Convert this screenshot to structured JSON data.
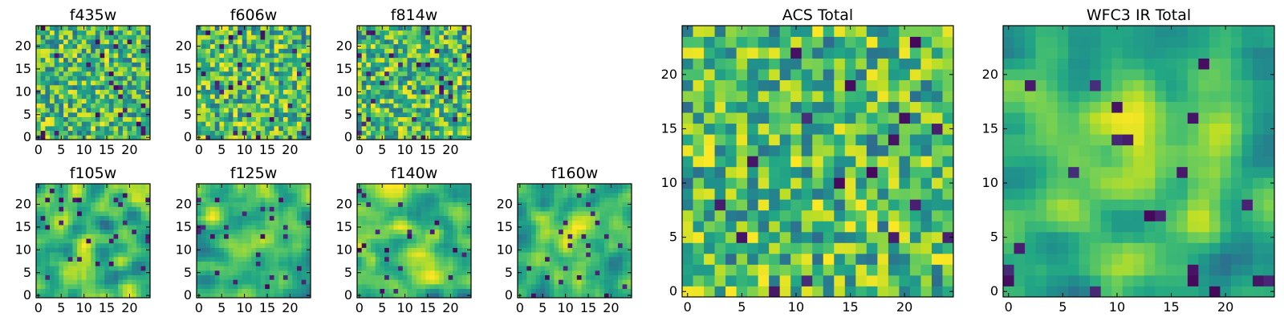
{
  "chart_data": [
    {
      "type": "heatmap",
      "title": "f435w",
      "colormap": "viridis",
      "grid_size": 25,
      "x_ticks": [
        "0",
        "5",
        "10",
        "15",
        "20"
      ],
      "y_ticks": [
        "0",
        "5",
        "10",
        "15",
        "20"
      ],
      "smoothness": 0,
      "bright_bias": 0.55,
      "seed": 11
    },
    {
      "type": "heatmap",
      "title": "f606w",
      "colormap": "viridis",
      "grid_size": 25,
      "x_ticks": [
        "0",
        "5",
        "10",
        "15",
        "20"
      ],
      "y_ticks": [
        "0",
        "5",
        "10",
        "15",
        "20"
      ],
      "smoothness": 0,
      "bright_bias": 0.6,
      "seed": 23
    },
    {
      "type": "heatmap",
      "title": "f814w",
      "colormap": "viridis",
      "grid_size": 25,
      "x_ticks": [
        "0",
        "5",
        "10",
        "15",
        "20"
      ],
      "y_ticks": [
        "0",
        "5",
        "10",
        "15",
        "20"
      ],
      "smoothness": 0,
      "bright_bias": 0.6,
      "seed": 37
    },
    {
      "type": "heatmap",
      "title": "f105w",
      "colormap": "viridis",
      "grid_size": 25,
      "x_ticks": [
        "0",
        "5",
        "10",
        "15",
        "20"
      ],
      "y_ticks": [
        "0",
        "5",
        "10",
        "15",
        "20"
      ],
      "smoothness": 1,
      "bright_bias": 0.55,
      "seed": 41
    },
    {
      "type": "heatmap",
      "title": "f125w",
      "colormap": "viridis",
      "grid_size": 25,
      "x_ticks": [
        "0",
        "5",
        "10",
        "15",
        "20"
      ],
      "y_ticks": [
        "0",
        "5",
        "10",
        "15",
        "20"
      ],
      "smoothness": 1,
      "bright_bias": 0.55,
      "seed": 53
    },
    {
      "type": "heatmap",
      "title": "f140w",
      "colormap": "viridis",
      "grid_size": 25,
      "x_ticks": [
        "0",
        "5",
        "10",
        "15",
        "20"
      ],
      "y_ticks": [
        "0",
        "5",
        "10",
        "15",
        "20"
      ],
      "smoothness": 1,
      "bright_bias": 0.6,
      "seed": 61
    },
    {
      "type": "heatmap",
      "title": "f160w",
      "colormap": "viridis",
      "grid_size": 25,
      "x_ticks": [
        "0",
        "5",
        "10",
        "15",
        "20"
      ],
      "y_ticks": [
        "0",
        "5",
        "10",
        "15",
        "20"
      ],
      "smoothness": 1,
      "bright_bias": 0.5,
      "center_bright": true,
      "seed": 71
    },
    {
      "type": "heatmap",
      "title": "ACS Total",
      "colormap": "viridis",
      "grid_size": 25,
      "x_ticks": [
        "0",
        "5",
        "10",
        "15",
        "20"
      ],
      "y_ticks": [
        "0",
        "5",
        "10",
        "15",
        "20"
      ],
      "smoothness": 0,
      "bright_bias": 0.62,
      "seed": 83
    },
    {
      "type": "heatmap",
      "title": "WFC3 IR Total",
      "colormap": "viridis",
      "grid_size": 25,
      "x_ticks": [
        "0",
        "5",
        "10",
        "15",
        "20"
      ],
      "y_ticks": [
        "0",
        "5",
        "10",
        "15",
        "20"
      ],
      "smoothness": 1,
      "bright_bias": 0.5,
      "center_bright": true,
      "seed": 97
    }
  ]
}
